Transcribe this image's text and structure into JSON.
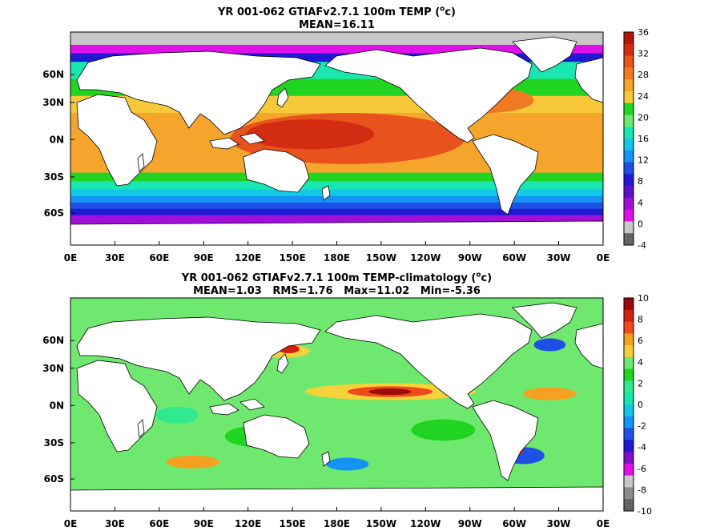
{
  "chart_data": [
    {
      "type": "heatmap",
      "title_line1": "YR 001-062 GTIAFv2.7.1 100m TEMP (",
      "title_unit": "o",
      "title_unit_tail": "c)",
      "title_line2": "MEAN=16.11",
      "xticks": [
        "0E",
        "30E",
        "60E",
        "90E",
        "120E",
        "150E",
        "180E",
        "150W",
        "120W",
        "90W",
        "60W",
        "30W",
        "0E"
      ],
      "yticks": [
        "60N",
        "30N",
        "0N",
        "30S",
        "60S"
      ],
      "colorbar": {
        "ticks": [
          "36",
          "32",
          "28",
          "24",
          "20",
          "16",
          "12",
          "8",
          "4",
          "0",
          "-4"
        ],
        "colors": [
          "#b5140a",
          "#d22d12",
          "#e8521c",
          "#f07a22",
          "#f5a52c",
          "#f7c93a",
          "#22d422",
          "#6ee86e",
          "#19e6b0",
          "#12c8e6",
          "#1593f5",
          "#1e50e6",
          "#2018d2",
          "#6010c8",
          "#a010d8",
          "#e010e8",
          "#c8c8c8",
          "#646464"
        ]
      }
    },
    {
      "type": "heatmap",
      "title_line1": "YR 001-062 GTIAFv2.7.1 100m TEMP-climatology (",
      "title_unit": "o",
      "title_unit_tail": "c)",
      "title_line2": "MEAN=1.03   RMS=1.76   Max=11.02   Min=-5.36",
      "xticks": [
        "0E",
        "30E",
        "60E",
        "90E",
        "120E",
        "150E",
        "180E",
        "150W",
        "120W",
        "90W",
        "60W",
        "30W",
        "0E"
      ],
      "yticks": [
        "60N",
        "30N",
        "0N",
        "30S",
        "60S"
      ],
      "colorbar": {
        "ticks": [
          "10",
          "8",
          "6",
          "4",
          "2",
          "0",
          "-2",
          "-4",
          "-6",
          "-8",
          "-10"
        ],
        "colors": [
          "#9c0a0a",
          "#d22012",
          "#ee4a1a",
          "#f5a020",
          "#f5d23a",
          "#6ee86e",
          "#22d422",
          "#30e890",
          "#19e6b0",
          "#12c8e6",
          "#1593f5",
          "#1e50e6",
          "#2018d2",
          "#8010c8",
          "#e010e8",
          "#c8c8c8",
          "#8c8c8c",
          "#646464"
        ]
      }
    }
  ]
}
